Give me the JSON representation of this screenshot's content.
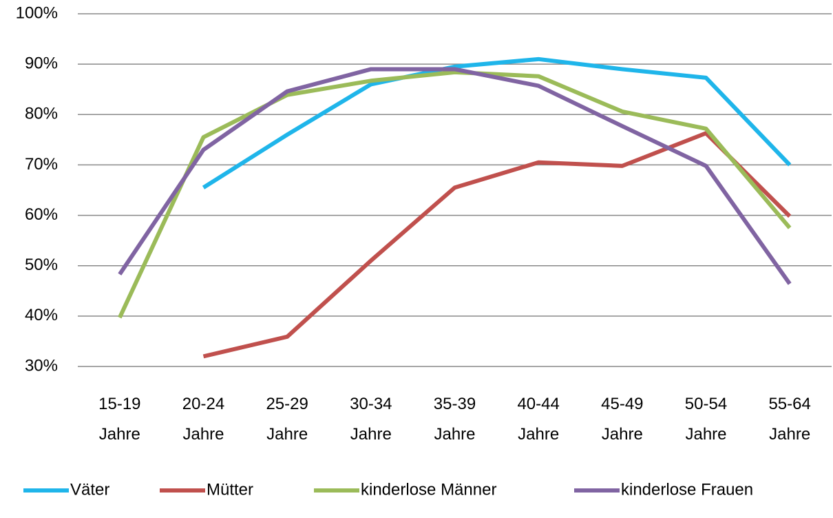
{
  "chart_data": {
    "type": "line",
    "categories": [
      "15-19 Jahre",
      "20-24 Jahre",
      "25-29 Jahre",
      "30-34 Jahre",
      "35-39 Jahre",
      "40-44 Jahre",
      "45-49 Jahre",
      "50-54 Jahre",
      "55-64 Jahre"
    ],
    "series": [
      {
        "name": "Väter",
        "color": "#1fb5ea",
        "values": [
          null,
          65.5,
          76,
          86,
          89.5,
          91,
          89,
          87.3,
          70
        ]
      },
      {
        "name": "Mütter",
        "color": "#c0504d",
        "values": [
          null,
          32,
          35.9,
          51,
          65.5,
          70.5,
          69.8,
          76.3,
          59.8
        ]
      },
      {
        "name": "kinderlose Männer",
        "color": "#9bbb59",
        "values": [
          39.7,
          75.5,
          83.9,
          86.7,
          88.4,
          87.6,
          80.6,
          77.2,
          57.5
        ]
      },
      {
        "name": "kinderlose Frauen",
        "color": "#8064a2",
        "values": [
          48.3,
          73,
          84.6,
          89,
          89,
          85.7,
          77.7,
          69.8,
          46.4
        ]
      }
    ],
    "ylim": [
      30,
      100
    ],
    "yticks": [
      {
        "value": 30,
        "label": "30%"
      },
      {
        "value": 40,
        "label": "40%"
      },
      {
        "value": 50,
        "label": "50%"
      },
      {
        "value": 60,
        "label": "60%"
      },
      {
        "value": 70,
        "label": "70%"
      },
      {
        "value": 80,
        "label": "80%"
      },
      {
        "value": 90,
        "label": "90%"
      },
      {
        "value": 100,
        "label": "100%"
      }
    ],
    "grid": true,
    "legend": "bottom"
  }
}
